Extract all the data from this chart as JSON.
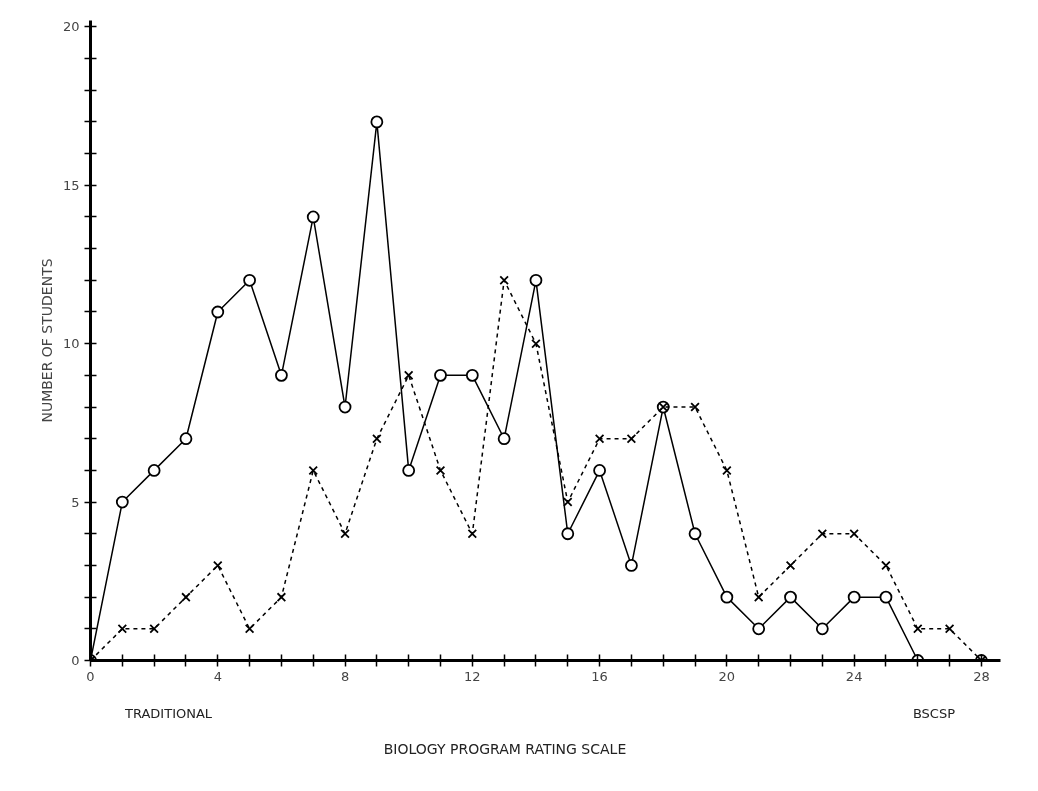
{
  "chart_data": {
    "type": "line",
    "xlabel": "BIOLOGY PROGRAM RATING SCALE",
    "ylabel": "NUMBER OF STUDENTS",
    "annotations": [
      "TRADITIONAL",
      "BSCSP"
    ],
    "x": [
      0,
      1,
      2,
      3,
      4,
      5,
      6,
      7,
      8,
      9,
      10,
      11,
      12,
      13,
      14,
      15,
      16,
      17,
      18,
      19,
      20,
      21,
      22,
      23,
      24,
      25,
      26,
      27,
      28
    ],
    "series": [
      {
        "color": "#000000",
        "marker": "circle",
        "line_style": "solid",
        "x": [
          0,
          1,
          2,
          3,
          4,
          5,
          6,
          7,
          8,
          9,
          10,
          11,
          12,
          13,
          14,
          15,
          16,
          17,
          18,
          19,
          20,
          21,
          22,
          23,
          24,
          25,
          26,
          28
        ],
        "values": [
          0,
          5,
          6,
          7,
          11,
          12,
          9,
          14,
          8,
          17,
          6,
          9,
          9,
          7,
          12,
          4,
          6,
          3,
          8,
          4,
          2,
          1,
          2,
          1,
          2,
          2,
          0,
          0
        ]
      },
      {
        "color": "#000000",
        "marker": "cross",
        "line_style": "dashed",
        "values": [
          0,
          1,
          1,
          2,
          3,
          1,
          2,
          6,
          4,
          7,
          9,
          6,
          4,
          12,
          10,
          5,
          7,
          7,
          8,
          8,
          6,
          2,
          3,
          4,
          4,
          3,
          1,
          1,
          0
        ]
      }
    ],
    "xlim": [
      0,
      28.6
    ],
    "ylim": [
      0,
      20.2
    ],
    "xticks": [
      0,
      {
        "value": 1,
        "label": null
      },
      {
        "value": 2,
        "label": null
      },
      {
        "value": 3,
        "label": null
      },
      4,
      {
        "value": 5,
        "label": null
      },
      {
        "value": 6,
        "label": null
      },
      {
        "value": 7,
        "label": null
      },
      8,
      {
        "value": 9,
        "label": null
      },
      {
        "value": 10,
        "label": null
      },
      {
        "value": 11,
        "label": null
      },
      12,
      {
        "value": 13,
        "label": null
      },
      {
        "value": 14,
        "label": null
      },
      {
        "value": 15,
        "label": null
      },
      16,
      {
        "value": 17,
        "label": null
      },
      {
        "value": 18,
        "label": null
      },
      {
        "value": 19,
        "label": null
      },
      20,
      {
        "value": 21,
        "label": null
      },
      {
        "value": 22,
        "label": null
      },
      {
        "value": 23,
        "label": null
      },
      24,
      {
        "value": 25,
        "label": null
      },
      {
        "value": 26,
        "label": null
      },
      {
        "value": 27,
        "label": null
      },
      28
    ],
    "yticks": [
      0,
      {
        "value": 1,
        "label": null
      },
      {
        "value": 2,
        "label": null
      },
      {
        "value": 3,
        "label": null
      },
      {
        "value": 4,
        "label": null
      },
      5,
      {
        "value": 6,
        "label": null
      },
      {
        "value": 7,
        "label": null
      },
      {
        "value": 8,
        "label": null
      },
      {
        "value": 9,
        "label": null
      },
      10,
      {
        "value": 11,
        "label": null
      },
      {
        "value": 12,
        "label": null
      },
      {
        "value": 13,
        "label": null
      },
      {
        "value": 14,
        "label": null
      },
      15,
      {
        "value": 16,
        "label": null
      },
      {
        "value": 17,
        "label": null
      },
      {
        "value": 18,
        "label": null
      },
      {
        "value": 19,
        "label": null
      },
      20
    ],
    "grid": false
  }
}
